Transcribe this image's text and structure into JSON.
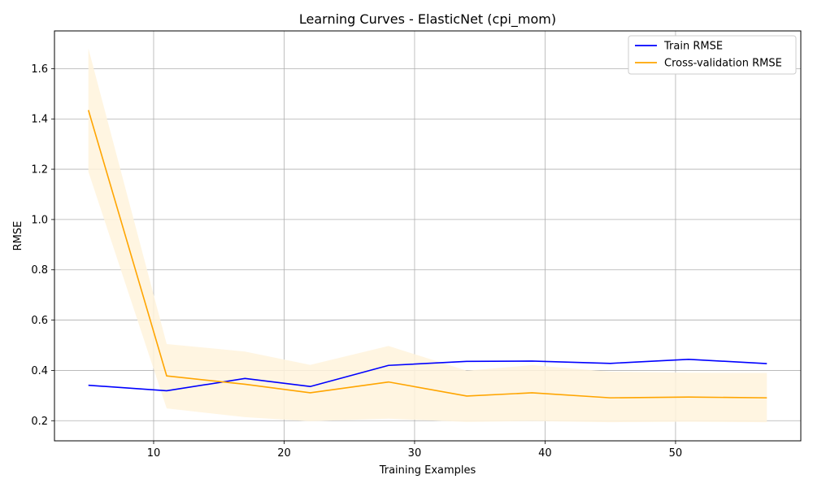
{
  "chart_data": {
    "type": "line",
    "title": "Learning Curves - ElasticNet (cpi_mom)",
    "xlabel": "Training Examples",
    "ylabel": "RMSE",
    "xlim": [
      2.4,
      59.6
    ],
    "ylim": [
      0.12,
      1.75
    ],
    "xticks": [
      10,
      20,
      30,
      40,
      50
    ],
    "yticks": [
      0.2,
      0.4,
      0.6,
      0.8,
      1.0,
      1.2,
      1.4,
      1.6
    ],
    "grid": true,
    "legend_position": "top-right",
    "x": [
      5,
      11,
      17,
      22,
      28,
      34,
      39,
      45,
      51,
      57
    ],
    "series": [
      {
        "name": "Train RMSE",
        "color": "#0000ff",
        "values": [
          0.341,
          0.319,
          0.368,
          0.336,
          0.42,
          0.436,
          0.437,
          0.428,
          0.444,
          0.427
        ]
      },
      {
        "name": "Cross-validation RMSE",
        "color": "#ffa500",
        "values": [
          1.435,
          0.378,
          0.345,
          0.311,
          0.354,
          0.298,
          0.311,
          0.291,
          0.294,
          0.291
        ],
        "band_upper": [
          1.68,
          0.505,
          0.475,
          0.422,
          0.497,
          0.399,
          0.421,
          0.395,
          0.391,
          0.39
        ],
        "band_lower": [
          1.19,
          0.249,
          0.214,
          0.198,
          0.208,
          0.195,
          0.199,
          0.194,
          0.196,
          0.194
        ],
        "band_color": "#fff3dc"
      }
    ]
  }
}
